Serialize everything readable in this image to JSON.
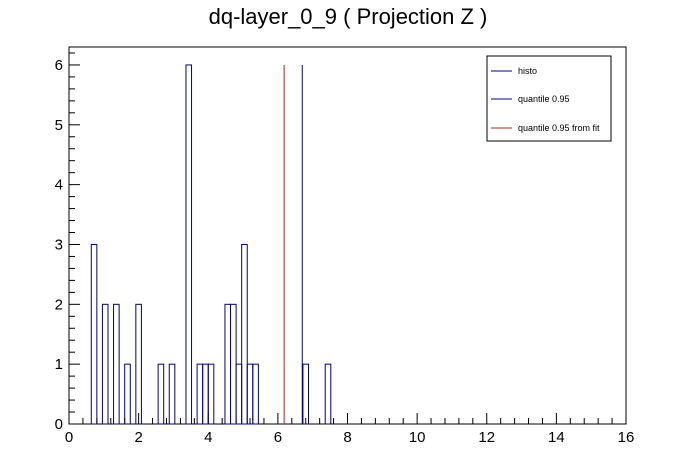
{
  "chart_data": {
    "type": "histogram",
    "title": "dq-layer_0_9 ( Projection Z )",
    "xlim": [
      0,
      16
    ],
    "ylim": [
      0,
      6.3
    ],
    "x_ticks": [
      0,
      2,
      4,
      6,
      8,
      10,
      12,
      14,
      16
    ],
    "y_ticks": [
      0,
      1,
      2,
      3,
      4,
      5,
      6
    ],
    "bin_width": 0.16,
    "histo": {
      "name": "histo",
      "color": "#000080",
      "bins": [
        {
          "x0": 0.64,
          "y": 3
        },
        {
          "x0": 0.96,
          "y": 2
        },
        {
          "x0": 1.28,
          "y": 2
        },
        {
          "x0": 1.6,
          "y": 1
        },
        {
          "x0": 1.92,
          "y": 2
        },
        {
          "x0": 2.56,
          "y": 1
        },
        {
          "x0": 2.88,
          "y": 1
        },
        {
          "x0": 3.36,
          "y": 6
        },
        {
          "x0": 3.68,
          "y": 1
        },
        {
          "x0": 3.84,
          "y": 1
        },
        {
          "x0": 4.0,
          "y": 1
        },
        {
          "x0": 4.48,
          "y": 2
        },
        {
          "x0": 4.64,
          "y": 2
        },
        {
          "x0": 4.8,
          "y": 1
        },
        {
          "x0": 4.96,
          "y": 3
        },
        {
          "x0": 5.12,
          "y": 1
        },
        {
          "x0": 5.28,
          "y": 1
        },
        {
          "x0": 6.72,
          "y": 1
        },
        {
          "x0": 7.36,
          "y": 1
        }
      ]
    },
    "quantile_lines": [
      {
        "name": "quantile 0.95",
        "x": 6.7,
        "y_top": 6,
        "color": "#000080"
      },
      {
        "name": "quantile 0.95 from fit",
        "x": 6.18,
        "y_top": 6,
        "color": "#b22222"
      }
    ],
    "legend": {
      "position": "top-right",
      "entries": [
        {
          "label": "histo",
          "color": "#000080"
        },
        {
          "label": "quantile 0.95",
          "color": "#000080"
        },
        {
          "label": "quantile 0.95 from fit",
          "color": "#b22222"
        }
      ]
    }
  }
}
